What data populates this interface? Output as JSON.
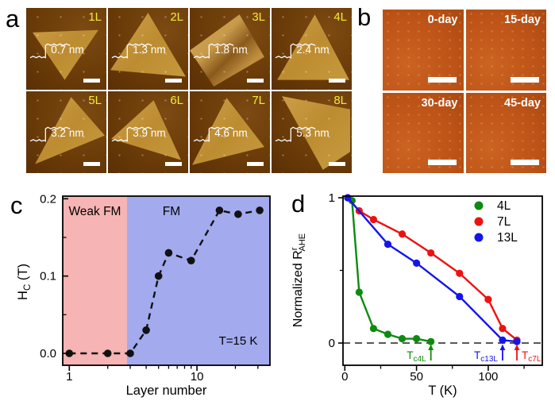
{
  "panels": {
    "a": {
      "letter": "a",
      "tiles": [
        {
          "label": "1L",
          "thickness": "0.7 nm"
        },
        {
          "label": "2L",
          "thickness": "1.3 nm"
        },
        {
          "label": "3L",
          "thickness": "1.8 nm"
        },
        {
          "label": "4L",
          "thickness": "2.4 nm"
        },
        {
          "label": "5L",
          "thickness": "3.2 nm"
        },
        {
          "label": "6L",
          "thickness": "3.9 nm"
        },
        {
          "label": "7L",
          "thickness": "4.6 nm"
        },
        {
          "label": "8L",
          "thickness": "5.3 nm"
        }
      ],
      "label_color": "#f3ea39"
    },
    "b": {
      "letter": "b",
      "tiles": [
        {
          "label": "0-day"
        },
        {
          "label": "15-day"
        },
        {
          "label": "30-day"
        },
        {
          "label": "45-day"
        }
      ]
    },
    "c": {
      "letter": "c"
    },
    "d": {
      "letter": "d"
    }
  },
  "chart_data": [
    {
      "panel": "c",
      "type": "scatter",
      "x_scale": "log",
      "title": "",
      "xlabel": "Layer number",
      "ylabel": {
        "base": "H",
        "sub": "C",
        "suffix": " (T)"
      },
      "annotation": "T=15 K",
      "regions": [
        {
          "label": "Weak FM",
          "x_from": 0.888,
          "x_to": 2.83,
          "color": "#f6b4b4"
        },
        {
          "label": "FM",
          "x_from": 2.83,
          "x_to": 37.3,
          "color": "#a3aaee"
        }
      ],
      "x": [
        1,
        2,
        3,
        4,
        5,
        6,
        9,
        15,
        21,
        31
      ],
      "y": [
        0.0,
        0.0,
        0.0,
        0.03,
        0.1,
        0.13,
        0.12,
        0.185,
        0.18,
        0.185
      ],
      "xlim": [
        0.888,
        37.3
      ],
      "ylim": [
        -0.0154,
        0.2034
      ],
      "xticks": {
        "major": [
          1,
          10
        ],
        "major_labels": [
          "1",
          "10"
        ],
        "minor": [
          2,
          3,
          4,
          5,
          6,
          7,
          8,
          9,
          20,
          30
        ]
      },
      "yticks": {
        "major": [
          0.0,
          0.1,
          0.2
        ],
        "major_labels": [
          "0.0",
          "0.1",
          "0.2"
        ],
        "minor": [
          0.05,
          0.15
        ]
      },
      "marker_color": "#111111",
      "line_style": "dashed"
    },
    {
      "panel": "d",
      "type": "line",
      "title": "",
      "xlabel": "T (K)",
      "ylabel": {
        "base": "Normalized R",
        "sup": "r",
        "sub": "AHE"
      },
      "series": [
        {
          "name": "4L",
          "color": "#0f8a10",
          "x": [
            5,
            10,
            20,
            30,
            40,
            50,
            60
          ],
          "y": [
            0.98,
            0.35,
            0.1,
            0.06,
            0.03,
            0.03,
            0.01
          ]
        },
        {
          "name": "7L",
          "color": "#ee1111",
          "x": [
            2,
            10,
            20,
            40,
            60,
            80,
            100,
            110,
            120
          ],
          "y": [
            1.0,
            0.91,
            0.85,
            0.75,
            0.62,
            0.48,
            0.3,
            0.1,
            0.02
          ]
        },
        {
          "name": "13L",
          "color": "#1414ee",
          "x": [
            2,
            30,
            50,
            80,
            110,
            120
          ],
          "y": [
            1.0,
            0.68,
            0.55,
            0.32,
            0.02,
            0.01
          ]
        }
      ],
      "xlim": [
        0,
        138
      ],
      "ylim": [
        -0.153,
        1.011
      ],
      "xticks": {
        "major": [
          0,
          50,
          100
        ],
        "major_labels": [
          "0",
          "50",
          "100"
        ],
        "minor": [
          25,
          75,
          125
        ]
      },
      "yticks": {
        "major": [
          1,
          0
        ],
        "major_labels": [
          "1",
          "0"
        ],
        "minor": [
          0.5
        ]
      },
      "zero_line": true,
      "legend": [
        "4L",
        "7L",
        "13L"
      ],
      "legend_position": "top-right",
      "tc_markers": [
        {
          "base": "T",
          "sub": "c4L",
          "x": 60,
          "color": "#0f8a10",
          "label_side": "left"
        },
        {
          "base": "T",
          "sub": "c13L",
          "x": 110,
          "color": "#1414ee",
          "label_side": "left"
        },
        {
          "base": "T",
          "sub": "c7L",
          "x": 120,
          "color": "#ee1111",
          "label_side": "right"
        }
      ]
    }
  ]
}
